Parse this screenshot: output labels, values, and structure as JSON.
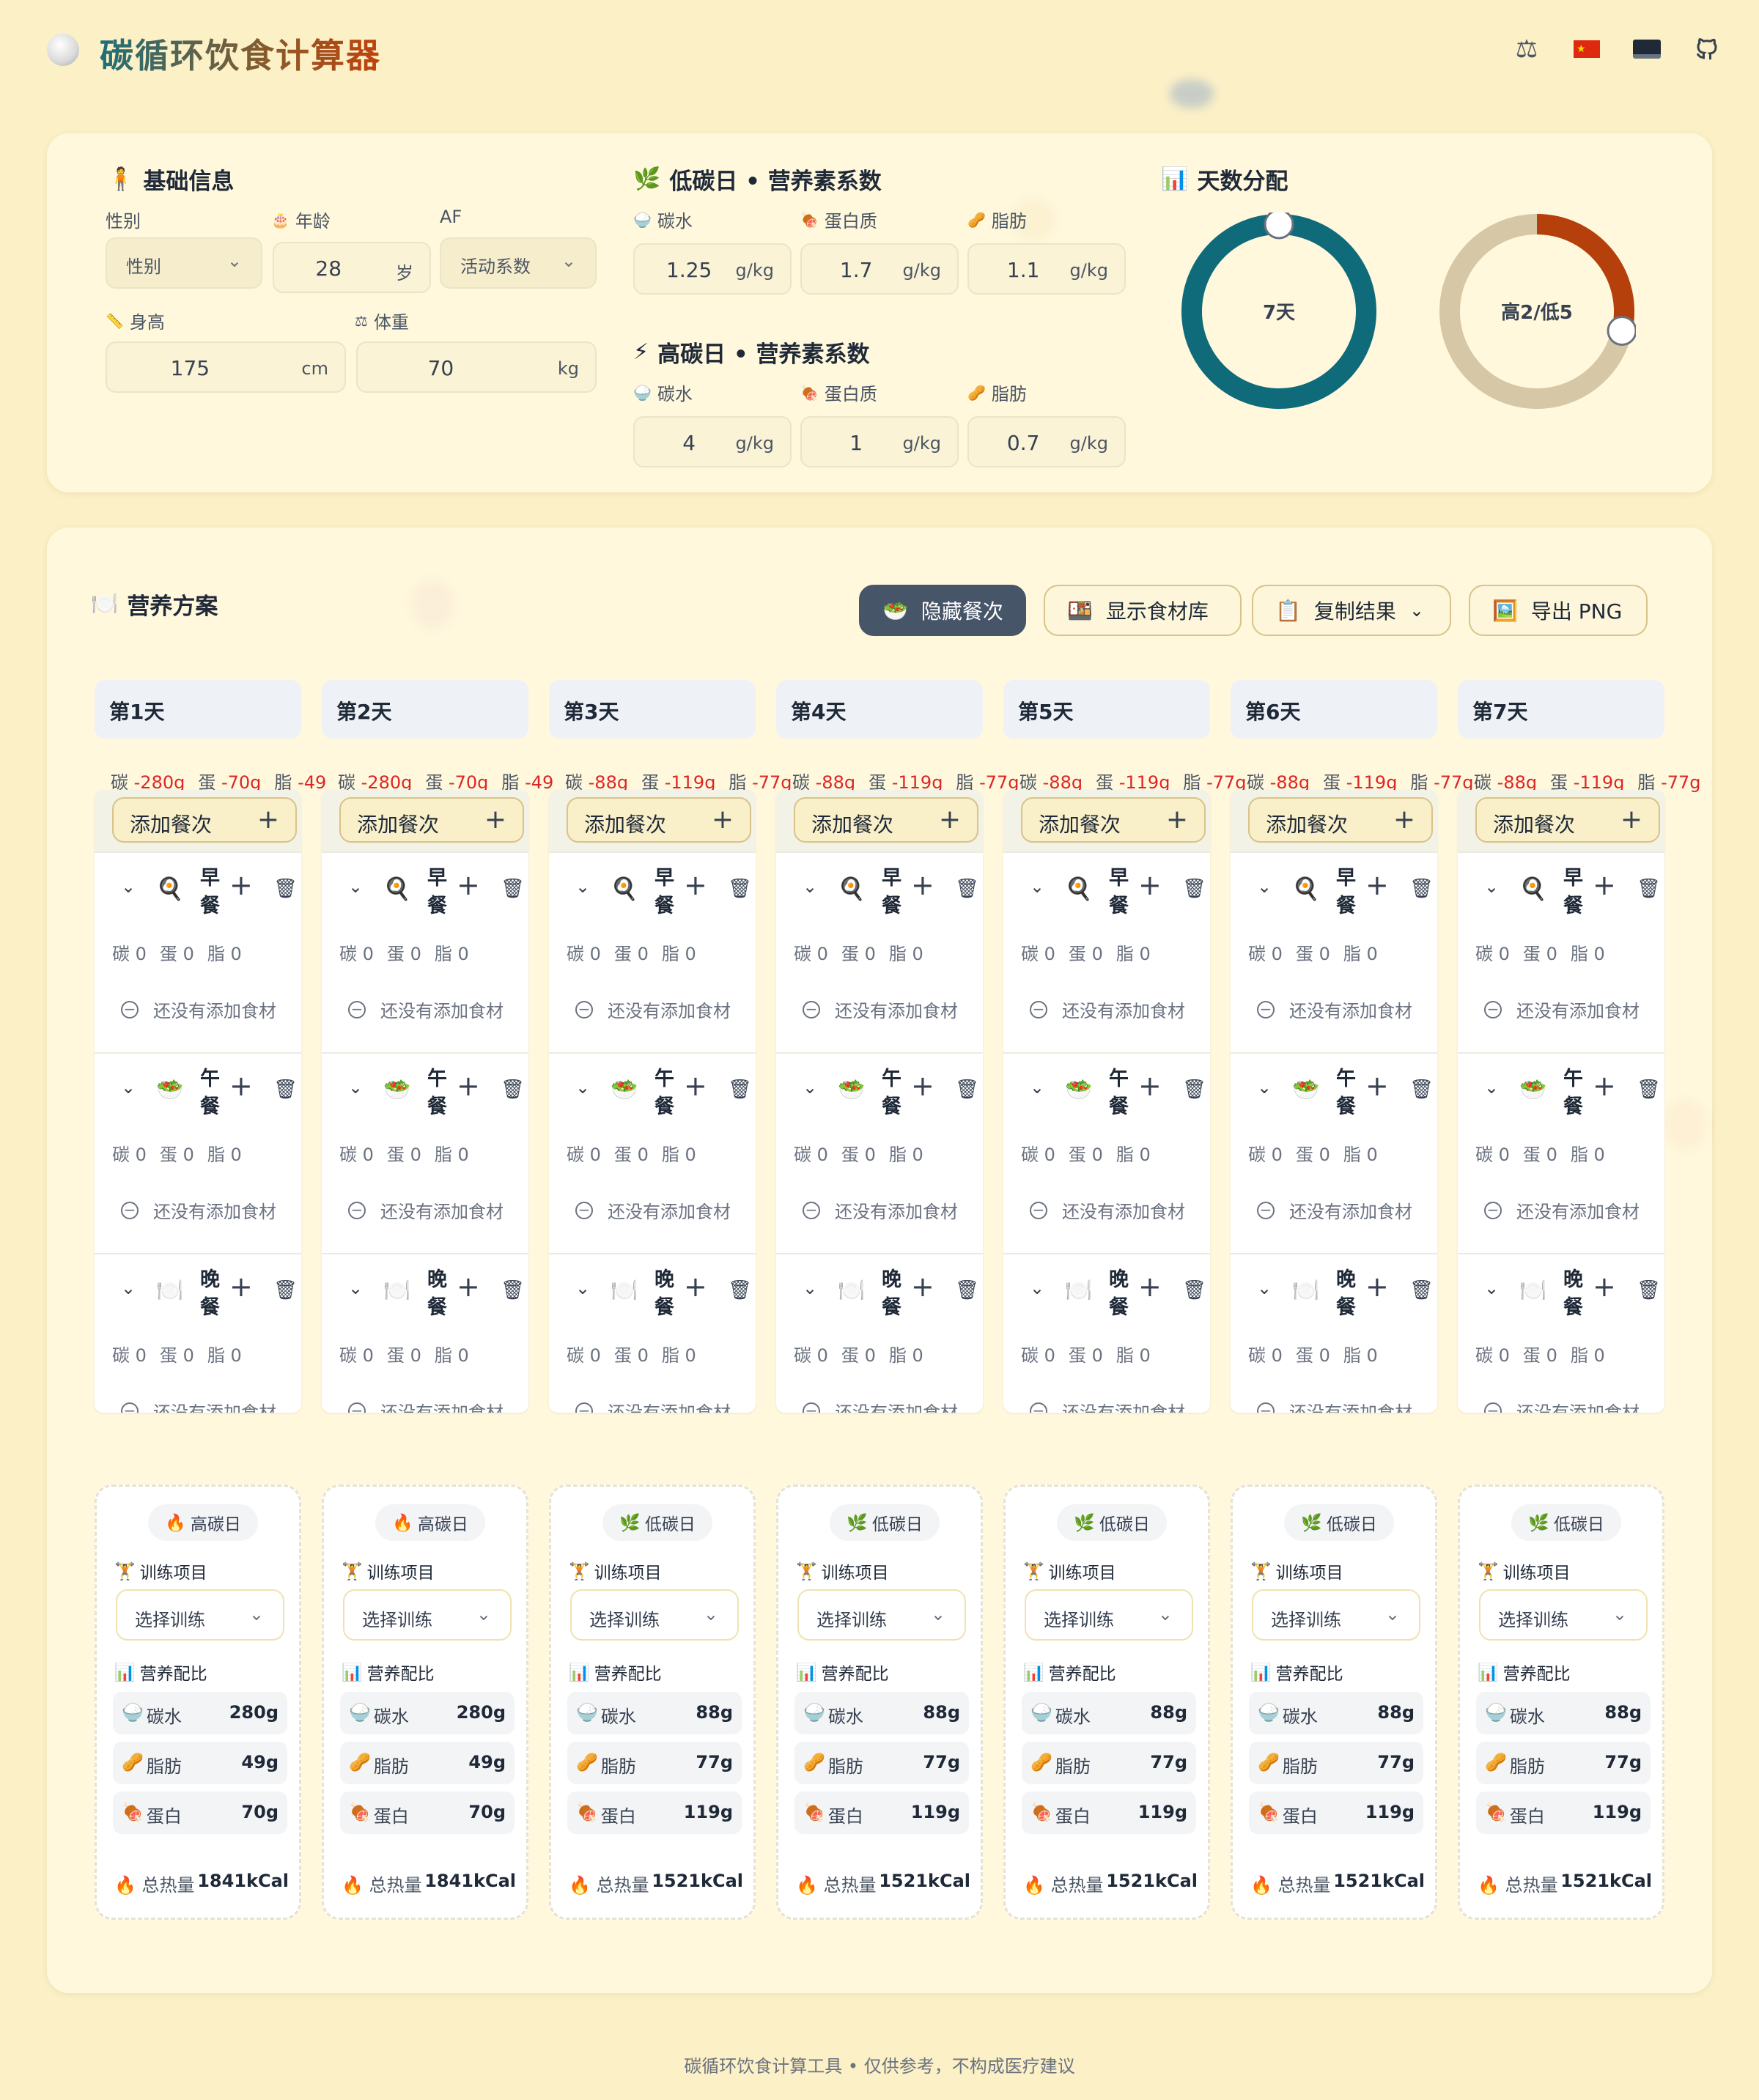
{
  "app": {
    "title": "碳循环饮食计算器"
  },
  "header_icons": [
    "scale-icon",
    "china-flag-icon",
    "laptop-icon",
    "github-icon"
  ],
  "basic": {
    "title": "基础信息",
    "gender_label": "性别",
    "gender_value": "性别",
    "age_label": "年龄",
    "age_value": "28",
    "age_unit": "岁",
    "af_label": "AF",
    "af_value": "活动系数",
    "height_label": "身高",
    "height_value": "175",
    "height_unit": "cm",
    "weight_label": "体重",
    "weight_value": "70",
    "weight_unit": "kg"
  },
  "low_carb": {
    "title": "低碳日 • 营养素系数",
    "carb_label": "碳水",
    "carb_value": "1.25",
    "protein_label": "蛋白质",
    "protein_value": "1.7",
    "fat_label": "脂肪",
    "fat_value": "1.1",
    "unit": "g/kg"
  },
  "high_carb": {
    "title": "高碳日 • 营养素系数",
    "carb_label": "碳水",
    "carb_value": "4",
    "protein_label": "蛋白质",
    "protein_value": "1",
    "fat_label": "脂肪",
    "fat_value": "0.7",
    "unit": "g/kg"
  },
  "distribution": {
    "title": "天数分配",
    "days_label": "7天",
    "split_label": "高2/低5",
    "high_days": 2,
    "low_days": 5,
    "total_days": 7,
    "colors": {
      "teal": "#0f6b7a",
      "rust": "#b5400b",
      "sand": "#d6c7a6"
    }
  },
  "plan": {
    "title": "营养方案",
    "buttons": {
      "hide_meals": "隐藏餐次",
      "show_food_lib": "显示食材库",
      "copy_result": "复制结果",
      "export_png": "导出 PNG"
    },
    "add_meal": "添加餐次",
    "empty_text": "还没有添加食材",
    "macro_labels": {
      "carb": "碳",
      "protein": "蛋",
      "fat": "脂"
    },
    "meal_macro_value": "0",
    "meals": [
      {
        "name": "早餐",
        "icon": "🍳"
      },
      {
        "name": "午餐",
        "icon": "🥗"
      },
      {
        "name": "晚餐",
        "icon": "🍽️"
      }
    ],
    "summary_labels": {
      "training": "训练项目",
      "training_select": "选择训练",
      "ratio": "营养配比",
      "carb": "碳水",
      "fat": "脂肪",
      "protein": "蛋白",
      "total": "总热量"
    },
    "days": [
      {
        "name": "第1天",
        "type": "高碳日",
        "type_icon": "🔥",
        "sum_c": "-280g",
        "sum_p": "-70g",
        "sum_f": "-49",
        "carb": "280g",
        "fat": "49g",
        "protein": "70g",
        "kcal": "1841kCal"
      },
      {
        "name": "第2天",
        "type": "高碳日",
        "type_icon": "🔥",
        "sum_c": "-280g",
        "sum_p": "-70g",
        "sum_f": "-49",
        "carb": "280g",
        "fat": "49g",
        "protein": "70g",
        "kcal": "1841kCal"
      },
      {
        "name": "第3天",
        "type": "低碳日",
        "type_icon": "🌿",
        "sum_c": "-88g",
        "sum_p": "-119g",
        "sum_f": "-77g",
        "carb": "88g",
        "fat": "77g",
        "protein": "119g",
        "kcal": "1521kCal"
      },
      {
        "name": "第4天",
        "type": "低碳日",
        "type_icon": "🌿",
        "sum_c": "-88g",
        "sum_p": "-119g",
        "sum_f": "-77g",
        "carb": "88g",
        "fat": "77g",
        "protein": "119g",
        "kcal": "1521kCal"
      },
      {
        "name": "第5天",
        "type": "低碳日",
        "type_icon": "🌿",
        "sum_c": "-88g",
        "sum_p": "-119g",
        "sum_f": "-77g",
        "carb": "88g",
        "fat": "77g",
        "protein": "119g",
        "kcal": "1521kCal"
      },
      {
        "name": "第6天",
        "type": "低碳日",
        "type_icon": "🌿",
        "sum_c": "-88g",
        "sum_p": "-119g",
        "sum_f": "-77g",
        "carb": "88g",
        "fat": "77g",
        "protein": "119g",
        "kcal": "1521kCal"
      },
      {
        "name": "第7天",
        "type": "低碳日",
        "type_icon": "🌿",
        "sum_c": "-88g",
        "sum_p": "-119g",
        "sum_f": "-77g",
        "carb": "88g",
        "fat": "77g",
        "protein": "119g",
        "kcal": "1521kCal"
      }
    ]
  },
  "footer": {
    "text": "碳循环饮食计算工具 • 仅供参考，不构成医疗建议"
  }
}
